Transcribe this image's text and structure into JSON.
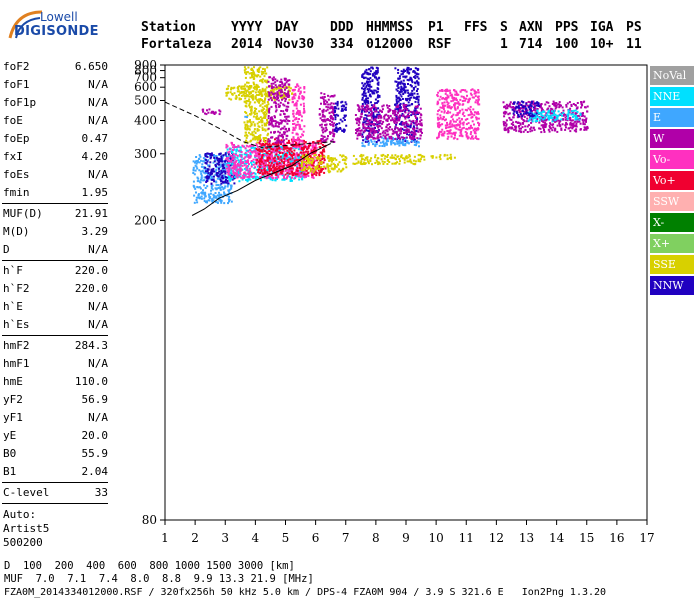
{
  "logo": {
    "line1": "Lowell",
    "line2": "DIGISONDE"
  },
  "header": {
    "labels": {
      "station": "Station",
      "yyyy": "YYYY",
      "day": "DAY",
      "ddd": "DDD",
      "hhmmss": "HHMMSS",
      "p1": "P1",
      "ffs": "FFS",
      "s": "S",
      "axn": "AXN",
      "pps": "PPS",
      "iga": "IGA",
      "ps": "PS"
    },
    "values": {
      "station": "Fortaleza",
      "yyyy": "2014",
      "day": "Nov30",
      "ddd": "334",
      "hhmmss": "012000",
      "p1": "RSF",
      "ffs": "",
      "s": "1",
      "axn": "714",
      "pps": "100",
      "iga": "10+",
      "ps": "11"
    }
  },
  "params": [
    {
      "name": "foF2",
      "value": "6.650"
    },
    {
      "name": "foF1",
      "value": "N/A"
    },
    {
      "name": "foF1p",
      "value": "N/A"
    },
    {
      "name": "foE",
      "value": "N/A"
    },
    {
      "name": "foEp",
      "value": "0.47"
    },
    {
      "name": "fxI",
      "value": "4.20"
    },
    {
      "name": "foEs",
      "value": "N/A"
    },
    {
      "name": "fmin",
      "value": "1.95"
    },
    {
      "sep": true
    },
    {
      "name": "MUF(D)",
      "value": "21.91"
    },
    {
      "name": "M(D)",
      "value": "3.29"
    },
    {
      "name": "D",
      "value": "N/A"
    },
    {
      "sep": true
    },
    {
      "name": "h`F",
      "value": "220.0"
    },
    {
      "name": "h`F2",
      "value": "220.0"
    },
    {
      "name": "h`E",
      "value": "N/A"
    },
    {
      "name": "h`Es",
      "value": "N/A"
    },
    {
      "sep": true
    },
    {
      "name": "hmF2",
      "value": "284.3"
    },
    {
      "name": "hmF1",
      "value": "N/A"
    },
    {
      "name": "hmE",
      "value": "110.0"
    },
    {
      "name": "yF2",
      "value": "56.9"
    },
    {
      "name": "yF1",
      "value": "N/A"
    },
    {
      "name": "yE",
      "value": "20.0"
    },
    {
      "name": "B0",
      "value": "55.9"
    },
    {
      "name": "B1",
      "value": "2.04"
    },
    {
      "sep": true
    },
    {
      "name": "C-level",
      "value": "33"
    },
    {
      "sep": true
    }
  ],
  "auto": {
    "line1": "Auto:",
    "line2": "Artist5",
    "line3": "500200"
  },
  "legend": [
    {
      "label": "NoVal",
      "color": "#a0a0a0"
    },
    {
      "label": "NNE",
      "color": "#00e0ff"
    },
    {
      "label": "E",
      "color": "#3fa7ff"
    },
    {
      "label": "W",
      "color": "#b000a8"
    },
    {
      "label": "Vo-",
      "color": "#ff30c0"
    },
    {
      "label": "Vo+",
      "color": "#f00030"
    },
    {
      "label": "SSW",
      "color": "#ffb0b0"
    },
    {
      "label": "X-",
      "color": "#008000"
    },
    {
      "label": "X+",
      "color": "#80d060"
    },
    {
      "label": "SSE",
      "color": "#d8d000"
    },
    {
      "label": "NNW",
      "color": "#2000c0"
    }
  ],
  "chart_data": {
    "type": "scatter",
    "title": "",
    "xlabel": "",
    "ylabel": "",
    "xlim": [
      1,
      17
    ],
    "ylim": [
      80,
      900
    ],
    "x_ticks": [
      "1",
      "2",
      "3",
      "4",
      "5",
      "6",
      "7",
      "8",
      "9",
      "10",
      "11",
      "12",
      "13",
      "14",
      "15",
      "16",
      "17"
    ],
    "y_ticks": [
      "80",
      "200",
      "300",
      "400",
      "500",
      "600",
      "700",
      "800",
      "900"
    ],
    "y_scale": "reciprocal",
    "grid": false,
    "legend_position": "right",
    "traces_description": "ionogram echo traces",
    "clusters": [
      {
        "x": [
          1.9,
          3.2
        ],
        "y": [
          220,
          300
        ],
        "color": "#3fa7ff"
      },
      {
        "x": [
          2.3,
          3.3
        ],
        "y": [
          245,
          305
        ],
        "color": "#2000c0"
      },
      {
        "x": [
          3.0,
          5.6
        ],
        "y": [
          250,
          320
        ],
        "color": "#00e0ff"
      },
      {
        "x": [
          3.0,
          6.0
        ],
        "y": [
          255,
          330
        ],
        "color": "#ff30c0"
      },
      {
        "x": [
          4.0,
          6.3
        ],
        "y": [
          260,
          340
        ],
        "color": "#f00030"
      },
      {
        "x": [
          5.5,
          7.0
        ],
        "y": [
          265,
          300
        ],
        "color": "#d8d000"
      },
      {
        "x": [
          3.0,
          5.2
        ],
        "y": [
          510,
          620
        ],
        "color": "#d8d000"
      },
      {
        "x": [
          3.6,
          4.4
        ],
        "y": [
          330,
          880
        ],
        "color": "#d8d000"
      },
      {
        "x": [
          4.4,
          5.1
        ],
        "y": [
          330,
          720
        ],
        "color": "#b000a8"
      },
      {
        "x": [
          5.2,
          5.6
        ],
        "y": [
          330,
          640
        ],
        "color": "#ff30c0"
      },
      {
        "x": [
          6.1,
          6.6
        ],
        "y": [
          330,
          560
        ],
        "color": "#b000a8"
      },
      {
        "x": [
          6.6,
          7.0
        ],
        "y": [
          360,
          500
        ],
        "color": "#2000c0"
      },
      {
        "x": [
          7.2,
          9.6
        ],
        "y": [
          280,
          300
        ],
        "color": "#d8d000"
      },
      {
        "x": [
          7.5,
          8.1
        ],
        "y": [
          330,
          880
        ],
        "color": "#2000c0"
      },
      {
        "x": [
          8.6,
          9.4
        ],
        "y": [
          330,
          880
        ],
        "color": "#2000c0"
      },
      {
        "x": [
          7.5,
          9.4
        ],
        "y": [
          320,
          345
        ],
        "color": "#3fa7ff"
      },
      {
        "x": [
          7.3,
          9.5
        ],
        "y": [
          340,
          480
        ],
        "color": "#b000a8"
      },
      {
        "x": [
          10.0,
          11.4
        ],
        "y": [
          340,
          590
        ],
        "color": "#ff30c0"
      },
      {
        "x": [
          9.8,
          10.6
        ],
        "y": [
          290,
          300
        ],
        "color": "#d8d000"
      },
      {
        "x": [
          12.2,
          15.0
        ],
        "y": [
          360,
          500
        ],
        "color": "#b000a8"
      },
      {
        "x": [
          13.0,
          14.8
        ],
        "y": [
          400,
          450
        ],
        "color": "#00e0ff"
      },
      {
        "x": [
          12.5,
          13.4
        ],
        "y": [
          420,
          500
        ],
        "color": "#2000c0"
      },
      {
        "x": [
          2.2,
          2.9
        ],
        "y": [
          430,
          455
        ],
        "color": "#b000a8"
      },
      {
        "x": [
          3.5,
          3.9
        ],
        "y": [
          415,
          420
        ],
        "color": "#3fa7ff"
      }
    ],
    "profile_dashed": {
      "x": [
        1.0,
        2.0,
        3.0,
        3.6,
        4.2,
        5.0,
        5.8,
        6.6
      ],
      "y": [
        490,
        420,
        360,
        330,
        315,
        320,
        325,
        330
      ]
    },
    "profile_solid": {
      "x": [
        1.9,
        2.3,
        2.8,
        3.4,
        4.0,
        4.6,
        5.2,
        5.8,
        6.5
      ],
      "y": [
        205,
        212,
        225,
        235,
        250,
        262,
        275,
        300,
        325
      ]
    }
  },
  "footer": {
    "d_label": "D",
    "d_values": "  100  200  400  600  800 1000 1500 3000 [km]",
    "muf_label": "MUF",
    "muf_values": "  7.0  7.1  7.4  8.0  8.8  9.9 13.3 21.9 [MHz]",
    "status": "FZA0M_2014334012000.RSF / 320fx256h 50 kHz 5.0 km / DPS-4 FZA0M 904 / 3.9 S 321.6 E   Ion2Png 1.3.20"
  }
}
